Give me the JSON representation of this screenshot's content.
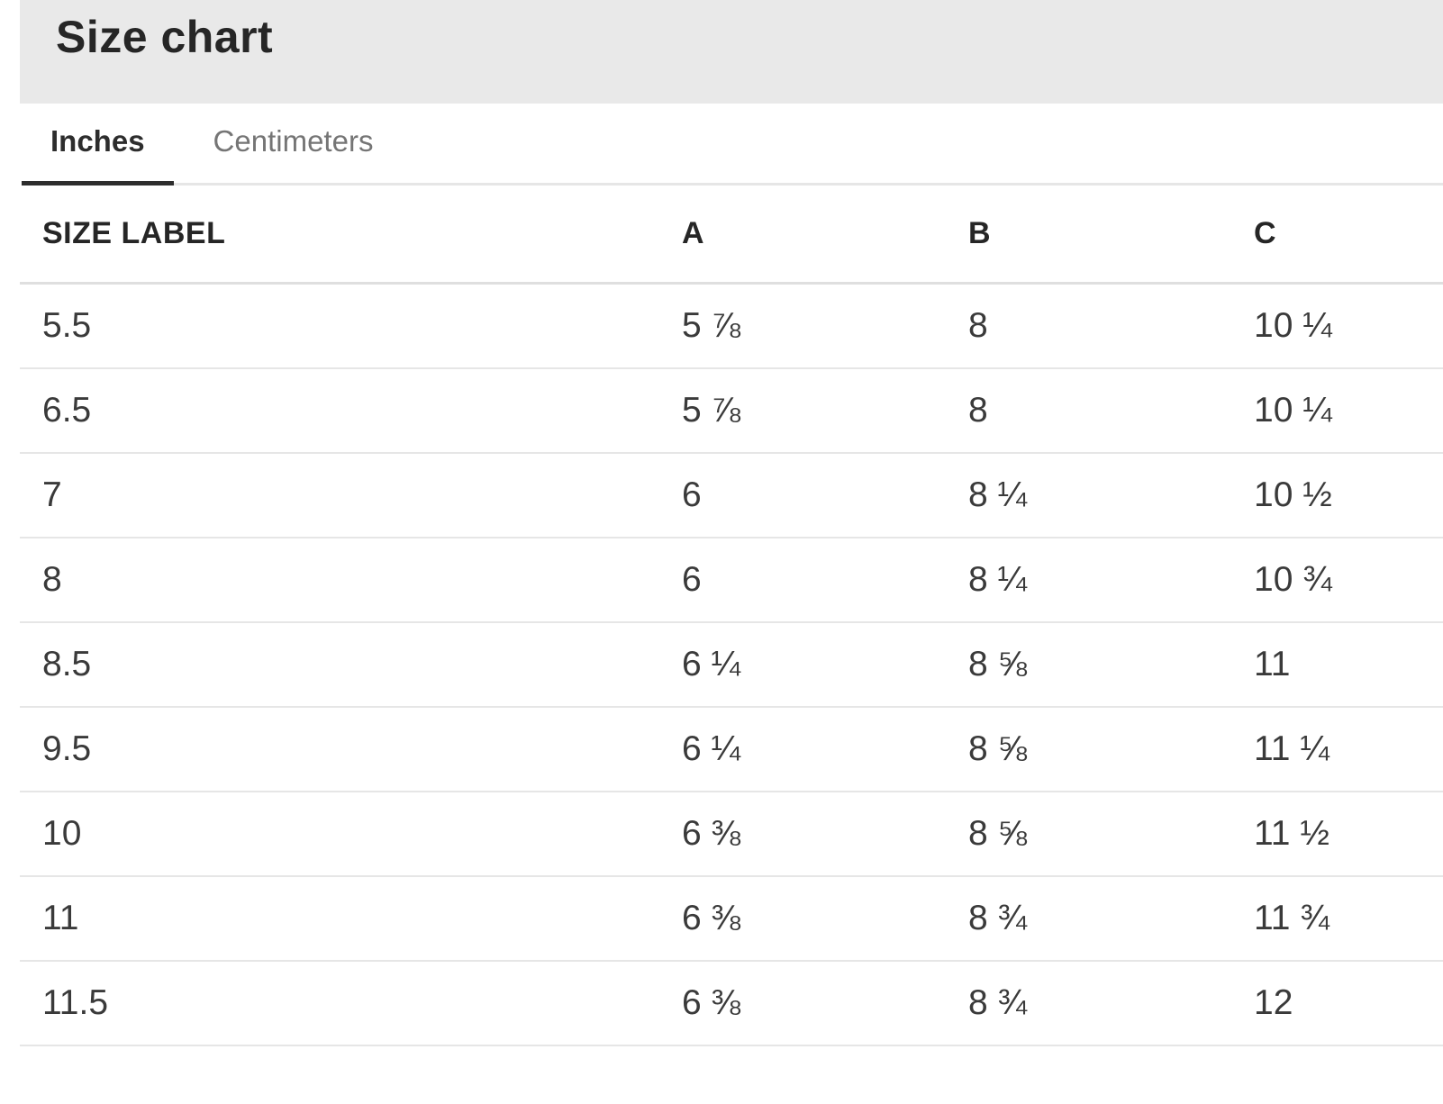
{
  "header": {
    "title": "Size chart"
  },
  "tabs": [
    {
      "label": "Inches",
      "active": true
    },
    {
      "label": "Centimeters",
      "active": false
    }
  ],
  "table": {
    "columns": [
      "SIZE LABEL",
      "A",
      "B",
      "C"
    ],
    "rows": [
      [
        "5.5",
        "5 ⅞",
        "8",
        "10 ¼"
      ],
      [
        "6.5",
        "5 ⅞",
        "8",
        "10 ¼"
      ],
      [
        "7",
        "6",
        "8 ¼",
        "10 ½"
      ],
      [
        "8",
        "6",
        "8 ¼",
        "10 ¾"
      ],
      [
        "8.5",
        "6 ¼",
        "8 ⅝",
        "11"
      ],
      [
        "9.5",
        "6 ¼",
        "8 ⅝",
        "11 ¼"
      ],
      [
        "10",
        "6 ⅜",
        "8 ⅝",
        "11 ½"
      ],
      [
        "11",
        "6 ⅜",
        "8 ¾",
        "11 ¾"
      ],
      [
        "11.5",
        "6 ⅜",
        "8 ¾",
        "12"
      ]
    ]
  },
  "colors": {
    "titlebar_bg": "#e9e9e9",
    "text_dark": "#262626",
    "text_cell": "#3a3a3a",
    "tab_inactive": "#757575",
    "active_underline": "#2d2d2d",
    "separator": "#e6e6e6",
    "header_separator": "#dfdfdf"
  }
}
